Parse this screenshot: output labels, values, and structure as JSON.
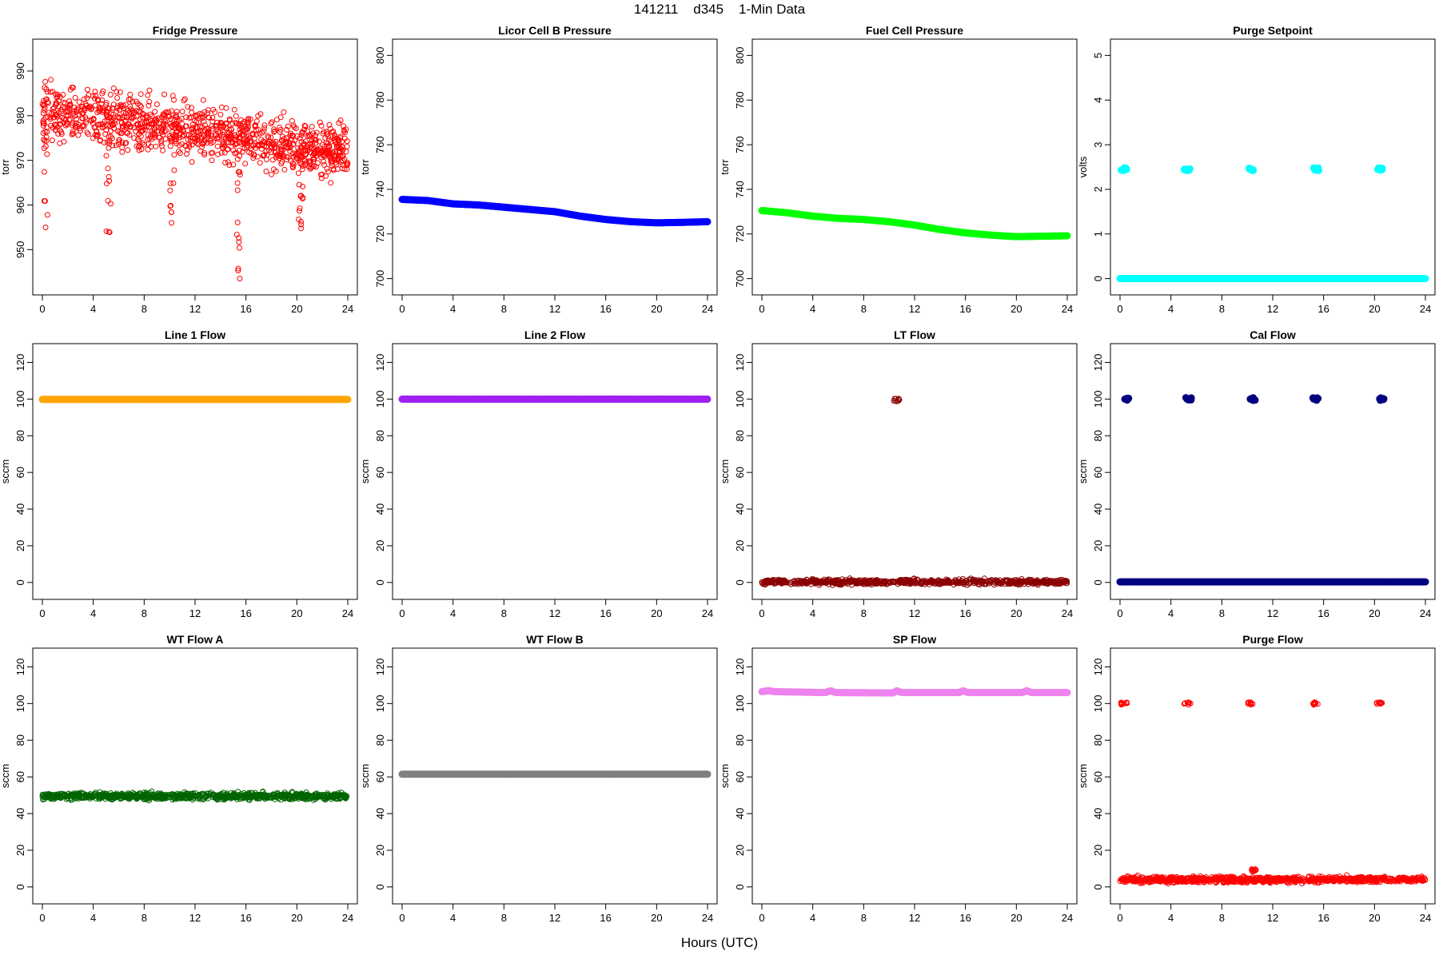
{
  "figure": {
    "title": "141211    d345    1-Min Data",
    "xlabel": "Hours (UTC)"
  },
  "chart_data": [
    {
      "id": "fridge",
      "type": "scatter",
      "title": "Fridge Pressure",
      "ylabel": "torr",
      "color": "#ff0000",
      "marker": "open-circle",
      "xlim": [
        0,
        24
      ],
      "xticks": [
        0,
        4,
        8,
        12,
        16,
        20,
        24
      ],
      "ylim": [
        942,
        995
      ],
      "yticks": [
        950,
        960,
        970,
        980,
        990
      ],
      "series": [
        {
          "model": "noisy",
          "x_range": [
            0,
            24
          ],
          "y_start": 981,
          "y_end": 972,
          "noise": 13,
          "count": 1100,
          "dips": [
            {
              "x": 0.3,
              "y_min": 954
            },
            {
              "x": 5.2,
              "y_min": 953
            },
            {
              "x": 10.2,
              "y_min": 955
            },
            {
              "x": 15.4,
              "y_min": 943
            },
            {
              "x": 20.3,
              "y_min": 949
            }
          ]
        }
      ]
    },
    {
      "id": "licor",
      "type": "scatter",
      "title": "Licor Cell B Pressure",
      "ylabel": "torr",
      "color": "#0000ff",
      "marker": "filled-circle",
      "xlim": [
        0,
        24
      ],
      "xticks": [
        0,
        4,
        8,
        12,
        16,
        20,
        24
      ],
      "ylim": [
        697,
        803
      ],
      "yticks": [
        700,
        720,
        740,
        760,
        780,
        800
      ],
      "series": [
        {
          "model": "curve",
          "points": [
            [
              0,
              735.5
            ],
            [
              2,
              735
            ],
            [
              4,
              733.5
            ],
            [
              6,
              733
            ],
            [
              8,
              732
            ],
            [
              10,
              731
            ],
            [
              12,
              730
            ],
            [
              14,
              728
            ],
            [
              16,
              726.5
            ],
            [
              18,
              725.5
            ],
            [
              20,
              725
            ],
            [
              22,
              725.2
            ],
            [
              24,
              725.5
            ]
          ]
        }
      ]
    },
    {
      "id": "fuelcell",
      "type": "scatter",
      "title": "Fuel Cell Pressure",
      "ylabel": "torr",
      "color": "#00ff00",
      "marker": "filled-circle",
      "xlim": [
        0,
        24
      ],
      "xticks": [
        0,
        4,
        8,
        12,
        16,
        20,
        24
      ],
      "ylim": [
        697,
        803
      ],
      "yticks": [
        700,
        720,
        740,
        760,
        780,
        800
      ],
      "series": [
        {
          "model": "curve",
          "points": [
            [
              0,
              730.5
            ],
            [
              2,
              729.5
            ],
            [
              4,
              728
            ],
            [
              6,
              727
            ],
            [
              8,
              726.5
            ],
            [
              10,
              725.5
            ],
            [
              12,
              724
            ],
            [
              14,
              722
            ],
            [
              16,
              720.5
            ],
            [
              18,
              719.5
            ],
            [
              20,
              718.8
            ],
            [
              22,
              719
            ],
            [
              24,
              719.2
            ]
          ]
        }
      ]
    },
    {
      "id": "purgesetpoint",
      "type": "scatter",
      "title": "Purge Setpoint",
      "ylabel": "volts",
      "color": "#00ffff",
      "marker": "filled-circle",
      "xlim": [
        0,
        24
      ],
      "xticks": [
        0,
        4,
        8,
        12,
        16,
        20,
        24
      ],
      "ylim": [
        -0.15,
        5.15
      ],
      "yticks": [
        0,
        1,
        2,
        3,
        4,
        5
      ],
      "series": [
        {
          "model": "flat",
          "y": 0,
          "x_range": [
            0,
            24
          ]
        }
      ],
      "clusters": [
        {
          "x": 0.3,
          "y": 2.45
        },
        {
          "x": 5.3,
          "y": 2.45
        },
        {
          "x": 10.3,
          "y": 2.45
        },
        {
          "x": 15.4,
          "y": 2.45
        },
        {
          "x": 20.4,
          "y": 2.45
        }
      ]
    },
    {
      "id": "line1",
      "type": "scatter",
      "title": "Line 1 Flow",
      "ylabel": "sccm",
      "color": "#ffa500",
      "marker": "filled-circle",
      "xlim": [
        0,
        24
      ],
      "xticks": [
        0,
        4,
        8,
        12,
        16,
        20,
        24
      ],
      "ylim": [
        -4,
        125
      ],
      "yticks": [
        0,
        20,
        40,
        60,
        80,
        100,
        120
      ],
      "series": [
        {
          "model": "flat",
          "y": 99.8,
          "x_range": [
            0,
            24
          ]
        }
      ]
    },
    {
      "id": "line2",
      "type": "scatter",
      "title": "Line 2 Flow",
      "ylabel": "sccm",
      "color": "#a020f0",
      "marker": "filled-circle",
      "xlim": [
        0,
        24
      ],
      "xticks": [
        0,
        4,
        8,
        12,
        16,
        20,
        24
      ],
      "ylim": [
        -4,
        125
      ],
      "yticks": [
        0,
        20,
        40,
        60,
        80,
        100,
        120
      ],
      "series": [
        {
          "model": "flat",
          "y": 100,
          "x_range": [
            0,
            24
          ]
        }
      ]
    },
    {
      "id": "ltflow",
      "type": "scatter",
      "title": "LT Flow",
      "ylabel": "sccm",
      "color": "#8b0000",
      "marker": "open-circle",
      "xlim": [
        0,
        24
      ],
      "xticks": [
        0,
        4,
        8,
        12,
        16,
        20,
        24
      ],
      "ylim": [
        -4,
        125
      ],
      "yticks": [
        0,
        20,
        40,
        60,
        80,
        100,
        120
      ],
      "series": [
        {
          "model": "noisy",
          "x_range": [
            0,
            24
          ],
          "y_start": 0.3,
          "y_end": 0.3,
          "noise": 3,
          "count": 700
        }
      ],
      "clusters": [
        {
          "x": 10.6,
          "y": 99.5
        }
      ]
    },
    {
      "id": "calflow",
      "type": "scatter",
      "title": "Cal Flow",
      "ylabel": "sccm",
      "color": "#000080",
      "marker": "filled-circle",
      "xlim": [
        0,
        24
      ],
      "xticks": [
        0,
        4,
        8,
        12,
        16,
        20,
        24
      ],
      "ylim": [
        -4,
        125
      ],
      "yticks": [
        0,
        20,
        40,
        60,
        80,
        100,
        120
      ],
      "series": [
        {
          "model": "flat",
          "y": 0.3,
          "x_range": [
            0,
            24
          ]
        }
      ],
      "clusters": [
        {
          "x": 0.5,
          "y": 100
        },
        {
          "x": 5.4,
          "y": 100
        },
        {
          "x": 10.4,
          "y": 100
        },
        {
          "x": 15.4,
          "y": 100
        },
        {
          "x": 20.5,
          "y": 100
        }
      ]
    },
    {
      "id": "wta",
      "type": "scatter",
      "title": "WT Flow A",
      "ylabel": "sccm",
      "color": "#006400",
      "marker": "open-circle",
      "xlim": [
        0,
        24
      ],
      "xticks": [
        0,
        4,
        8,
        12,
        16,
        20,
        24
      ],
      "ylim": [
        -4,
        125
      ],
      "yticks": [
        0,
        20,
        40,
        60,
        80,
        100,
        120
      ],
      "series": [
        {
          "model": "noisy",
          "x_range": [
            0,
            24
          ],
          "y_start": 49.5,
          "y_end": 49.5,
          "noise": 4,
          "count": 900
        }
      ]
    },
    {
      "id": "wtb",
      "type": "scatter",
      "title": "WT Flow B",
      "ylabel": "sccm",
      "color": "#808080",
      "marker": "filled-circle",
      "xlim": [
        0,
        24
      ],
      "xticks": [
        0,
        4,
        8,
        12,
        16,
        20,
        24
      ],
      "ylim": [
        -4,
        125
      ],
      "yticks": [
        0,
        20,
        40,
        60,
        80,
        100,
        120
      ],
      "series": [
        {
          "model": "flat",
          "y": 61.5,
          "x_range": [
            0,
            24
          ]
        }
      ]
    },
    {
      "id": "spflow",
      "type": "scatter",
      "title": "SP Flow",
      "ylabel": "sccm",
      "color": "#ee82ee",
      "marker": "filled-circle",
      "xlim": [
        0,
        24
      ],
      "xticks": [
        0,
        4,
        8,
        12,
        16,
        20,
        24
      ],
      "ylim": [
        -4,
        125
      ],
      "yticks": [
        0,
        20,
        40,
        60,
        80,
        100,
        120
      ],
      "series": [
        {
          "model": "curve",
          "points": [
            [
              0,
              106.5
            ],
            [
              0.5,
              107
            ],
            [
              1,
              106.5
            ],
            [
              5,
              106
            ],
            [
              5.4,
              107
            ],
            [
              5.8,
              106
            ],
            [
              10.3,
              105.8
            ],
            [
              10.6,
              107
            ],
            [
              11,
              106
            ],
            [
              15.5,
              106
            ],
            [
              15.8,
              107
            ],
            [
              16.2,
              106
            ],
            [
              20.5,
              106
            ],
            [
              20.8,
              107
            ],
            [
              21.2,
              106
            ],
            [
              24,
              106
            ]
          ]
        }
      ]
    },
    {
      "id": "purgeflow",
      "type": "scatter",
      "title": "Purge Flow",
      "ylabel": "sccm",
      "color": "#ff0000",
      "marker": "open-circle",
      "xlim": [
        0,
        24
      ],
      "xticks": [
        0,
        4,
        8,
        12,
        16,
        20,
        24
      ],
      "ylim": [
        -4,
        125
      ],
      "yticks": [
        0,
        20,
        40,
        60,
        80,
        100,
        120
      ],
      "series": [
        {
          "model": "noisy",
          "x_range": [
            0,
            24
          ],
          "y_start": 4,
          "y_end": 4,
          "noise": 3.5,
          "count": 900
        }
      ],
      "clusters": [
        {
          "x": 0.3,
          "y": 100
        },
        {
          "x": 5.3,
          "y": 100
        },
        {
          "x": 10.3,
          "y": 100
        },
        {
          "x": 15.4,
          "y": 100
        },
        {
          "x": 20.4,
          "y": 100
        },
        {
          "x": 10.5,
          "y": 9
        }
      ]
    }
  ]
}
